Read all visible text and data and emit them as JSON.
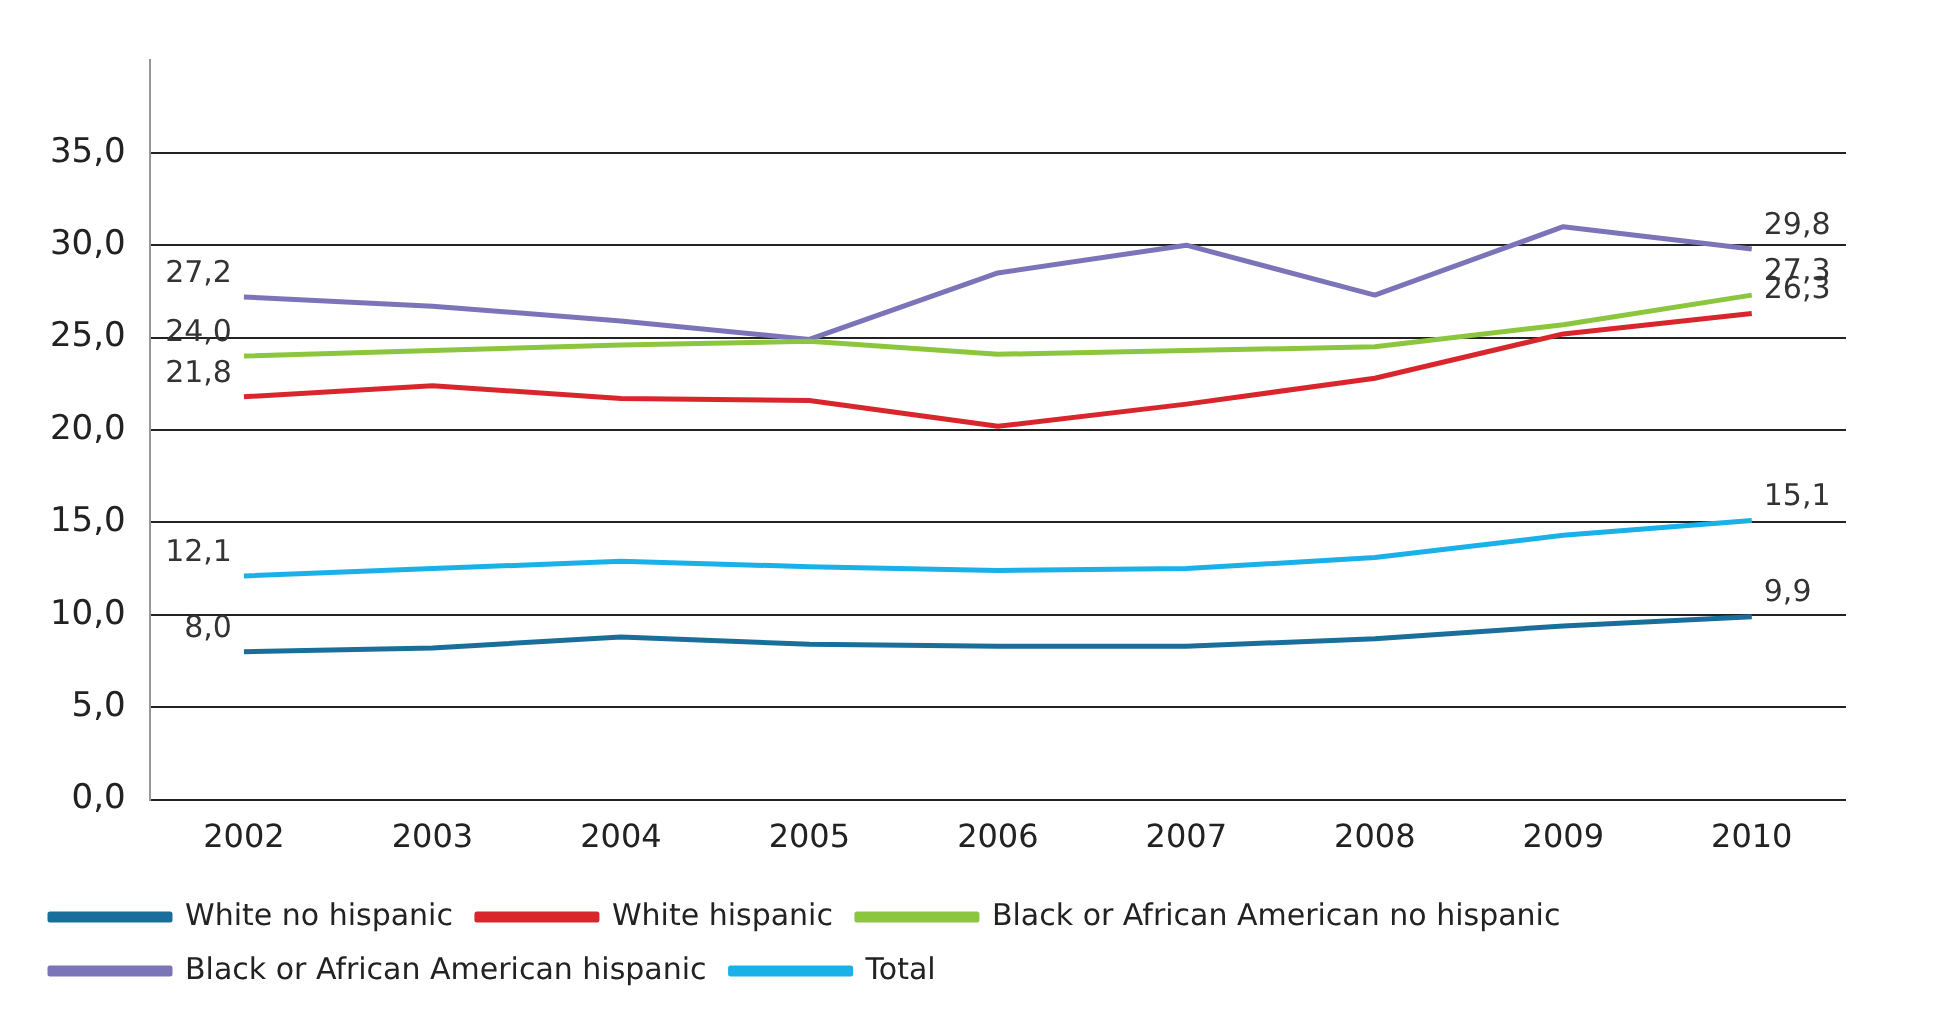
{
  "chart_data": {
    "type": "line",
    "categories": [
      "2002",
      "2003",
      "2004",
      "2005",
      "2006",
      "2007",
      "2008",
      "2009",
      "2010"
    ],
    "series": [
      {
        "name": "White no hispanic",
        "color": "#1a6e9a",
        "values": [
          8.0,
          8.2,
          8.8,
          8.4,
          8.3,
          8.3,
          8.7,
          9.4,
          9.9
        ],
        "value_labels": [
          "8,0",
          null,
          null,
          null,
          null,
          null,
          null,
          null,
          "9,9"
        ]
      },
      {
        "name": "White hispanic",
        "color": "#d8262c",
        "values": [
          21.8,
          22.4,
          21.7,
          21.6,
          20.2,
          21.4,
          22.8,
          25.2,
          26.3
        ],
        "value_labels": [
          "21,8",
          null,
          null,
          null,
          null,
          null,
          null,
          null,
          "26,3"
        ]
      },
      {
        "name": "Black or African American no hispanic",
        "color": "#8cc63f",
        "values": [
          24.0,
          24.3,
          24.6,
          24.8,
          24.1,
          24.3,
          24.5,
          25.7,
          27.3
        ],
        "value_labels": [
          "24,0",
          null,
          null,
          null,
          null,
          null,
          null,
          null,
          "27,3"
        ]
      },
      {
        "name": "Black or African American hispanic",
        "color": "#7b74b8",
        "values": [
          27.2,
          26.7,
          25.9,
          24.9,
          28.5,
          30.0,
          27.3,
          31.0,
          29.8
        ],
        "value_labels": [
          "27,2",
          null,
          null,
          null,
          null,
          null,
          null,
          null,
          "29,8"
        ]
      },
      {
        "name": "Total",
        "color": "#1ab0e8",
        "values": [
          12.1,
          12.5,
          12.9,
          12.6,
          12.4,
          12.5,
          13.1,
          14.3,
          15.1
        ],
        "value_labels": [
          "12,1",
          null,
          null,
          null,
          null,
          null,
          null,
          null,
          "15,1"
        ]
      }
    ],
    "ylim": [
      0,
      40
    ],
    "yticks": [
      {
        "value": 0,
        "label": "0,0"
      },
      {
        "value": 5,
        "label": "5,0"
      },
      {
        "value": 10,
        "label": "10,0"
      },
      {
        "value": 15,
        "label": "15,0"
      },
      {
        "value": 20,
        "label": "20,0"
      },
      {
        "value": 25,
        "label": "25,0"
      },
      {
        "value": 30,
        "label": "30,0"
      },
      {
        "value": 35,
        "label": "35,0"
      }
    ],
    "grid": "y",
    "legend": "bottom",
    "marker": "none",
    "line_style": "solid"
  }
}
